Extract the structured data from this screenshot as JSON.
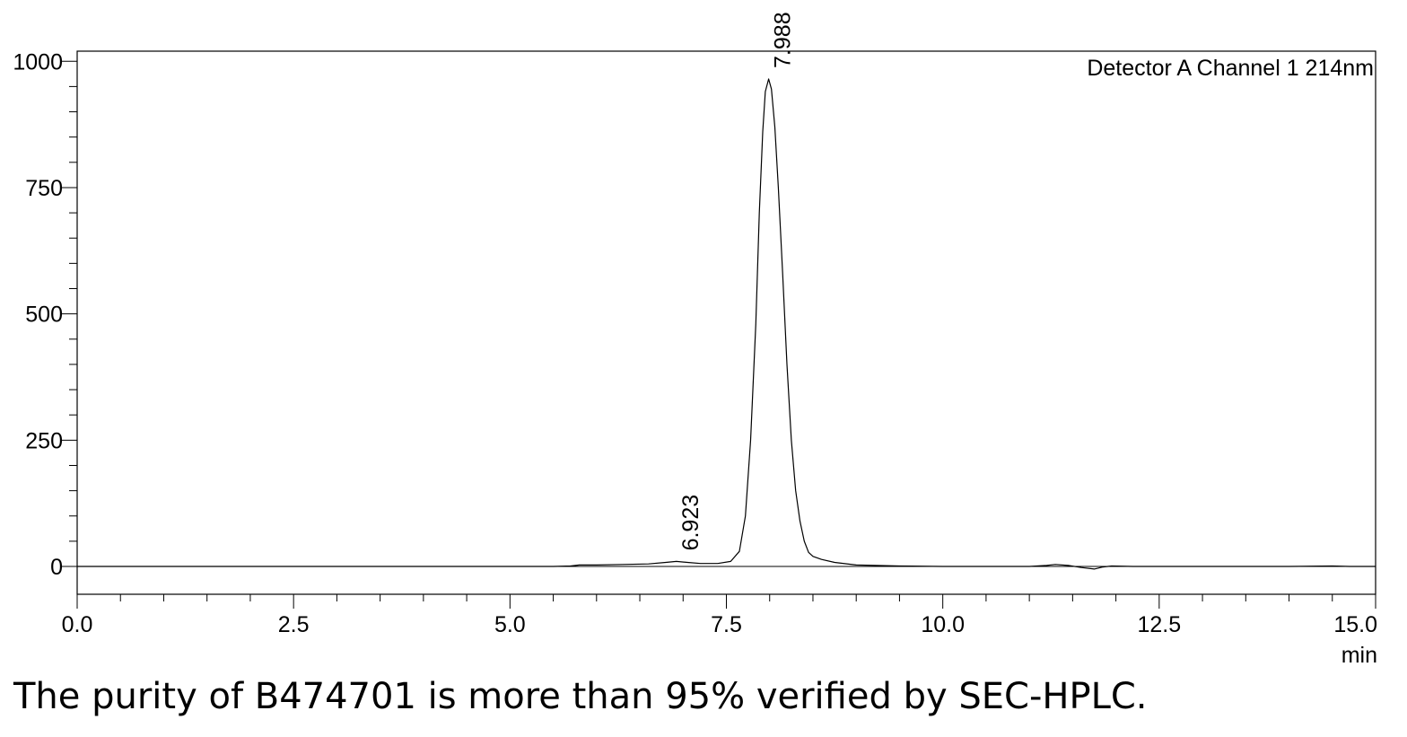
{
  "chart_data": {
    "type": "line",
    "title": "",
    "annotation": "Detector A Channel 1 214nm",
    "xlabel": "min",
    "ylabel": "",
    "xlim": [
      0,
      15
    ],
    "ylim": [
      -55,
      1020
    ],
    "x_ticks": [
      0.0,
      2.5,
      5.0,
      7.5,
      10.0,
      12.5,
      15.0
    ],
    "x_tick_labels": [
      "0.0",
      "2.5",
      "5.0",
      "7.5",
      "10.0",
      "12.5",
      "15.0"
    ],
    "y_ticks": [
      0,
      250,
      500,
      750,
      1000
    ],
    "y_tick_labels": [
      "0",
      "250",
      "500",
      "750",
      "1000"
    ],
    "grid": false,
    "baseline": 0,
    "series": [
      {
        "x": [
          0.0,
          5.5,
          5.7,
          5.8,
          6.0,
          6.3,
          6.6,
          6.8,
          6.923,
          7.05,
          7.2,
          7.4,
          7.55,
          7.65,
          7.72,
          7.78,
          7.84,
          7.88,
          7.92,
          7.95,
          7.988,
          8.02,
          8.06,
          8.1,
          8.15,
          8.2,
          8.25,
          8.3,
          8.35,
          8.4,
          8.45,
          8.5,
          8.6,
          8.75,
          9.0,
          9.5,
          10.0,
          11.0,
          11.2,
          11.3,
          11.45,
          11.6,
          11.75,
          11.85,
          11.95,
          12.2,
          13.0,
          14.0,
          14.5,
          14.7,
          15.0
        ],
        "y": [
          0,
          0,
          1,
          3,
          3,
          4,
          5,
          8,
          10,
          8,
          6,
          6,
          10,
          30,
          100,
          250,
          480,
          700,
          860,
          940,
          965,
          945,
          870,
          750,
          580,
          400,
          250,
          150,
          90,
          50,
          28,
          20,
          14,
          8,
          3,
          1,
          0,
          0,
          2,
          4,
          2,
          -2,
          -5,
          -1,
          1,
          0,
          0,
          0,
          1,
          0,
          0
        ]
      }
    ],
    "peak_labels": [
      {
        "x": 6.923,
        "y": 10,
        "label": "6.923"
      },
      {
        "x": 7.988,
        "y": 965,
        "label": "7.988"
      }
    ]
  },
  "caption": "The purity of B474701 is more than 95% verified by SEC-HPLC."
}
